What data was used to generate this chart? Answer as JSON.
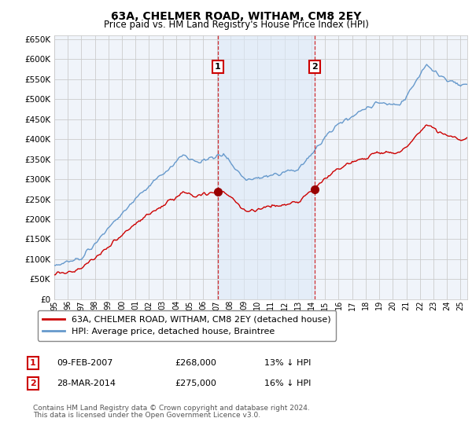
{
  "title": "63A, CHELMER ROAD, WITHAM, CM8 2EY",
  "subtitle": "Price paid vs. HM Land Registry's House Price Index (HPI)",
  "ylim": [
    0,
    660000
  ],
  "yticks": [
    0,
    50000,
    100000,
    150000,
    200000,
    250000,
    300000,
    350000,
    400000,
    450000,
    500000,
    550000,
    600000,
    650000
  ],
  "sale1_price": 268000,
  "sale1_label": "09-FEB-2007",
  "sale1_hpi_diff": "13% ↓ HPI",
  "sale1_x": 2007.1,
  "sale2_price": 275000,
  "sale2_label": "28-MAR-2014",
  "sale2_hpi_diff": "16% ↓ HPI",
  "sale2_x": 2014.25,
  "property_line_color": "#cc0000",
  "hpi_line_color": "#6699cc",
  "hpi_fill_color": "#dce9f7",
  "grid_color": "#cccccc",
  "background_color": "#ffffff",
  "plot_bg_color": "#f0f4fa",
  "annotation_box_color": "#cc0000",
  "vline_color": "#cc0000",
  "legend_label_property": "63A, CHELMER ROAD, WITHAM, CM8 2EY (detached house)",
  "legend_label_hpi": "HPI: Average price, detached house, Braintree",
  "footer1": "Contains HM Land Registry data © Crown copyright and database right 2024.",
  "footer2": "This data is licensed under the Open Government Licence v3.0."
}
